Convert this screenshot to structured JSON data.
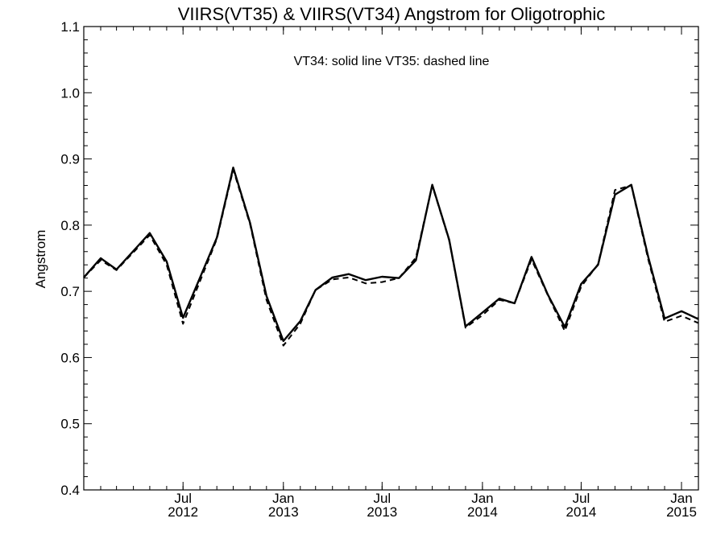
{
  "chart_data": {
    "type": "line",
    "title": "VIIRS(VT35) & VIIRS(VT34)  Angstrom for Oligotrophic",
    "annotation": "VT34: solid line   VT35: dashed line",
    "xlabel": "",
    "ylabel": "Angstrom",
    "xlim": [
      "2012-01-01",
      "2015-02-01"
    ],
    "ylim": [
      0.4,
      1.1
    ],
    "grid": false,
    "x_ticks": [
      {
        "date": "2012-07-01",
        "month": "Jul",
        "year": "2012"
      },
      {
        "date": "2013-01-01",
        "month": "Jan",
        "year": "2013"
      },
      {
        "date": "2013-07-01",
        "month": "Jul",
        "year": "2013"
      },
      {
        "date": "2014-01-01",
        "month": "Jan",
        "year": "2014"
      },
      {
        "date": "2014-07-01",
        "month": "Jul",
        "year": "2014"
      },
      {
        "date": "2015-01-01",
        "month": "Jan",
        "year": "2015"
      }
    ],
    "y_ticks": [
      {
        "value": 0.4,
        "label": "0.4"
      },
      {
        "value": 0.5,
        "label": "0.5"
      },
      {
        "value": 0.6,
        "label": "0.6"
      },
      {
        "value": 0.7,
        "label": "0.7"
      },
      {
        "value": 0.8,
        "label": "0.8"
      },
      {
        "value": 0.9,
        "label": "0.9"
      },
      {
        "value": 1.0,
        "label": "1.0"
      },
      {
        "value": 1.1,
        "label": "1.1"
      }
    ],
    "series": [
      {
        "style": "solid",
        "color": "#000000",
        "points": [
          [
            "2012-01-01",
            0.721
          ],
          [
            "2012-02-01",
            0.75
          ],
          [
            "2012-03-01",
            0.733
          ],
          [
            "2012-05-01",
            0.788
          ],
          [
            "2012-06-01",
            0.745
          ],
          [
            "2012-07-01",
            0.66
          ],
          [
            "2012-09-01",
            0.781
          ],
          [
            "2012-10-01",
            0.887
          ],
          [
            "2012-11-01",
            0.803
          ],
          [
            "2012-12-01",
            0.693
          ],
          [
            "2013-01-01",
            0.625
          ],
          [
            "2013-02-01",
            0.655
          ],
          [
            "2013-03-01",
            0.702
          ],
          [
            "2013-04-01",
            0.721
          ],
          [
            "2013-05-01",
            0.726
          ],
          [
            "2013-06-01",
            0.717
          ],
          [
            "2013-07-01",
            0.722
          ],
          [
            "2013-08-01",
            0.72
          ],
          [
            "2013-09-01",
            0.747
          ],
          [
            "2013-10-01",
            0.861
          ],
          [
            "2013-11-01",
            0.778
          ],
          [
            "2013-12-01",
            0.647
          ],
          [
            "2014-01-01",
            0.668
          ],
          [
            "2014-02-01",
            0.689
          ],
          [
            "2014-03-01",
            0.682
          ],
          [
            "2014-04-01",
            0.752
          ],
          [
            "2014-05-01",
            0.695
          ],
          [
            "2014-06-01",
            0.646
          ],
          [
            "2014-07-01",
            0.711
          ],
          [
            "2014-08-01",
            0.74
          ],
          [
            "2014-09-01",
            0.846
          ],
          [
            "2014-10-01",
            0.861
          ],
          [
            "2014-11-01",
            0.752
          ],
          [
            "2014-12-01",
            0.659
          ],
          [
            "2015-01-01",
            0.67
          ],
          [
            "2015-02-01",
            0.658
          ]
        ]
      },
      {
        "style": "dashed",
        "color": "#000000",
        "points": [
          [
            "2012-01-01",
            0.721
          ],
          [
            "2012-02-01",
            0.747
          ],
          [
            "2012-03-01",
            0.732
          ],
          [
            "2012-05-01",
            0.785
          ],
          [
            "2012-06-01",
            0.74
          ],
          [
            "2012-07-01",
            0.651
          ],
          [
            "2012-09-01",
            0.779
          ],
          [
            "2012-10-01",
            0.884
          ],
          [
            "2012-11-01",
            0.801
          ],
          [
            "2012-12-01",
            0.687
          ],
          [
            "2013-01-01",
            0.618
          ],
          [
            "2013-02-01",
            0.651
          ],
          [
            "2013-03-01",
            0.702
          ],
          [
            "2013-04-01",
            0.718
          ],
          [
            "2013-05-01",
            0.721
          ],
          [
            "2013-06-01",
            0.712
          ],
          [
            "2013-07-01",
            0.714
          ],
          [
            "2013-08-01",
            0.72
          ],
          [
            "2013-09-01",
            0.751
          ],
          [
            "2013-10-01",
            0.86
          ],
          [
            "2013-11-01",
            0.777
          ],
          [
            "2013-12-01",
            0.645
          ],
          [
            "2014-01-01",
            0.664
          ],
          [
            "2014-02-01",
            0.687
          ],
          [
            "2014-03-01",
            0.682
          ],
          [
            "2014-04-01",
            0.748
          ],
          [
            "2014-05-01",
            0.694
          ],
          [
            "2014-06-01",
            0.64
          ],
          [
            "2014-07-01",
            0.707
          ],
          [
            "2014-08-01",
            0.741
          ],
          [
            "2014-09-01",
            0.853
          ],
          [
            "2014-10-01",
            0.86
          ],
          [
            "2014-11-01",
            0.748
          ],
          [
            "2014-12-01",
            0.654
          ],
          [
            "2015-01-01",
            0.663
          ],
          [
            "2015-02-01",
            0.652
          ]
        ]
      }
    ]
  }
}
